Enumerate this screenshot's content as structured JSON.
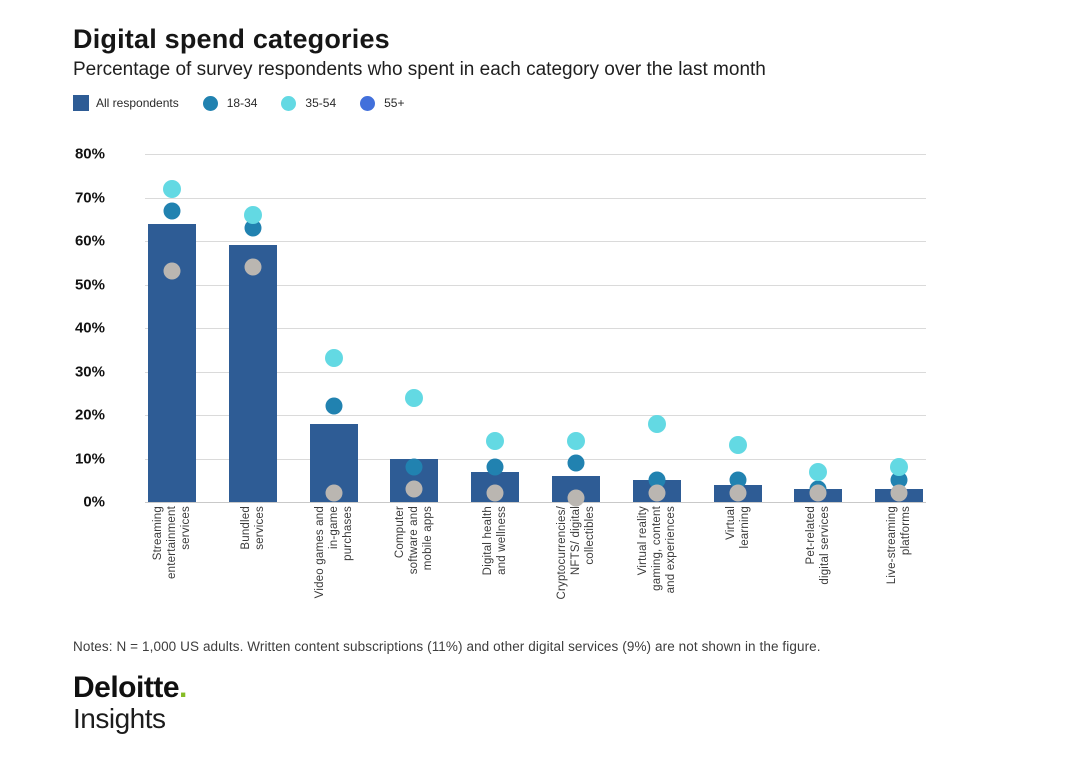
{
  "title": "Digital spend categories",
  "subtitle": "Percentage of survey respondents who spent in each category over the last month",
  "legend": [
    {
      "label": "All respondents",
      "marker": "square",
      "color": "#2E5C95"
    },
    {
      "label": "18-34",
      "marker": "circle",
      "color": "#2182B0"
    },
    {
      "label": "35-54",
      "marker": "circle",
      "color": "#63D9E3"
    },
    {
      "label": "55+",
      "marker": "circle",
      "color": "#4270DB"
    }
  ],
  "chart_data": {
    "type": "bar",
    "overlay_type": "scatter",
    "title": "Digital spend categories",
    "subtitle": "Percentage of survey respondents who spent in each category over the last month",
    "categories": [
      "Streaming entertainment services",
      "Bundled services",
      "Video games and in-game purchases",
      "Computer software and mobile apps",
      "Digital health and wellness",
      "Cryptocurrencies/ NFTS/ digital collectibles",
      "Virtual reality gaming, content and experiences",
      "Virtual learning",
      "Pet-related digital services",
      "Live-streaming platforms"
    ],
    "category_label_lines": [
      "Streaming\nentertainment\nservices",
      "Bundled\nservices",
      "Video games and\nin-game\npurchases",
      "Computer\nsoftware and\nmobile apps",
      "Digital health\nand wellness",
      "Cryptocurrencies/\nNFTS/ digital\ncollectibles",
      "Virtual reality\ngaming, content\nand experiences",
      "Virtual\nlearning",
      "Pet-related\ndigital services",
      "Live-streaming\nplatforms"
    ],
    "series": [
      {
        "name": "All respondents",
        "type": "bar",
        "color": "#2E5C95",
        "values": [
          64,
          59,
          18,
          10,
          7,
          6,
          5,
          4,
          3,
          3
        ]
      },
      {
        "name": "18-34",
        "type": "scatter",
        "color": "#2182B0",
        "values": [
          67,
          63,
          22,
          8,
          8,
          9,
          5,
          5,
          3,
          5
        ]
      },
      {
        "name": "35-54",
        "type": "scatter",
        "color": "#63D9E3",
        "values": [
          72,
          66,
          33,
          24,
          14,
          14,
          18,
          13,
          7,
          8
        ]
      },
      {
        "name": "55+",
        "type": "scatter",
        "color": "#BAB6B1",
        "legend_color": "#4270DB",
        "values": [
          53,
          54,
          2,
          3,
          2,
          1,
          2,
          2,
          2,
          2
        ]
      }
    ],
    "ylabel": "",
    "xlabel": "",
    "ylim": [
      0,
      80
    ],
    "yticks": [
      "80%",
      "70%",
      "60%",
      "50%",
      "40%",
      "30%",
      "20%",
      "10%",
      "0%"
    ],
    "grid": true,
    "legend_position": "top"
  },
  "notes": "Notes: N = 1,000 US adults. Written content subscriptions (11%) and other digital services (9%) are not shown in the figure.",
  "logo": {
    "line1": "Deloitte",
    "dot": ".",
    "line2": "Insights",
    "dot_color": "#86BC25"
  }
}
